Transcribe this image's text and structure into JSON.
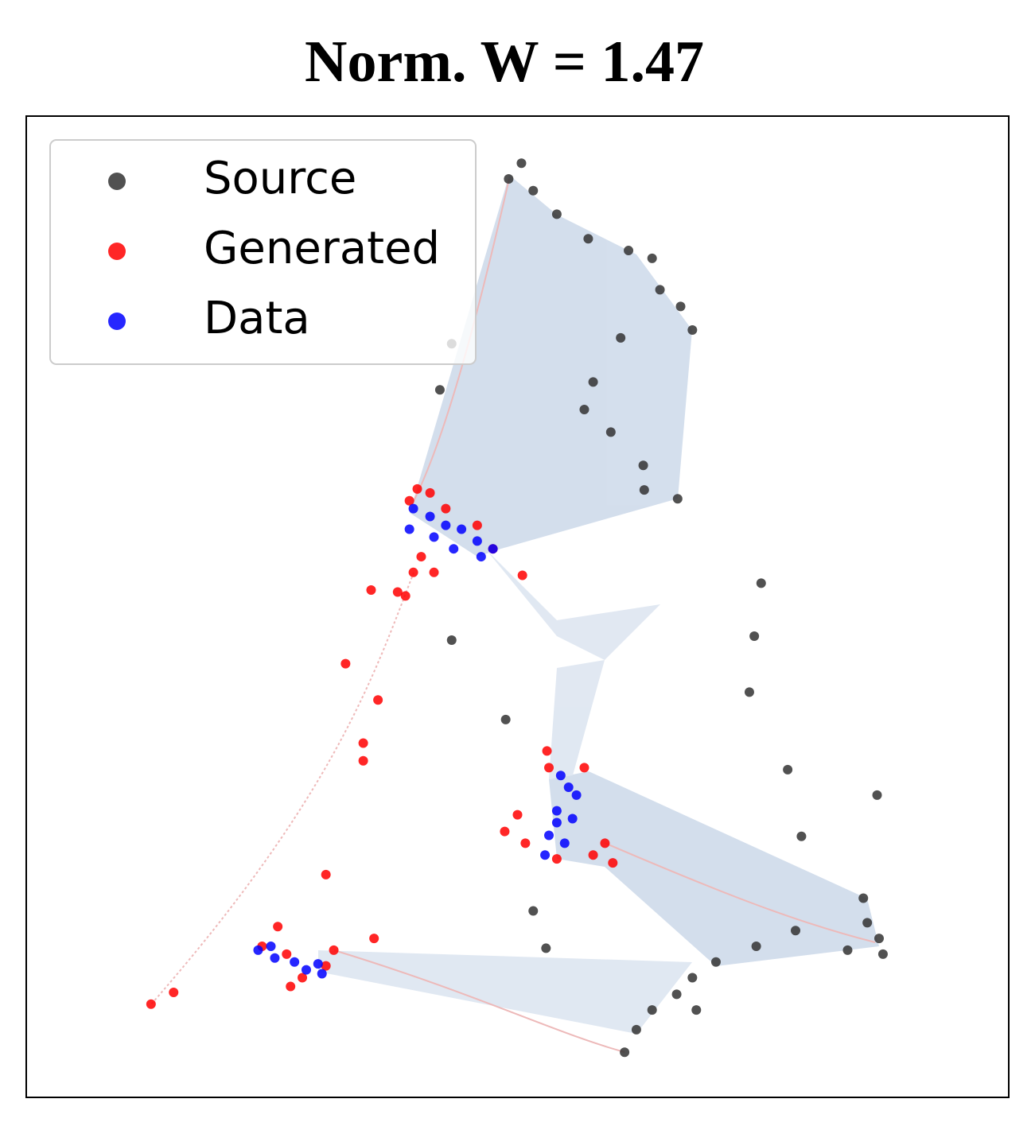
{
  "chart_data": {
    "type": "scatter",
    "title": "Norm. W = 1.47",
    "xlim": [
      0,
      100
    ],
    "ylim": [
      0,
      100
    ],
    "grid": false,
    "legend": "upper left",
    "series": [
      {
        "name": "Source",
        "color": "#333333",
        "x": [
          50.4,
          49.1,
          51.6,
          54.0,
          57.2,
          61.3,
          63.7,
          64.5,
          66.6,
          67.8,
          60.5,
          57.7,
          56.8,
          59.5,
          62.8,
          62.9,
          66.3,
          43.3,
          42.1,
          74.8,
          74.1,
          73.6,
          43.3,
          48.8,
          77.5,
          86.6,
          78.9,
          85.2,
          85.6,
          86.8,
          87.2,
          83.6,
          78.3,
          74.3,
          70.2,
          67.8,
          66.2,
          63.7,
          62.1,
          60.9,
          68.2,
          51.6,
          52.9
        ],
        "y": [
          95.2,
          93.6,
          92.4,
          90.0,
          87.5,
          86.3,
          85.5,
          82.3,
          80.6,
          78.2,
          77.4,
          72.9,
          70.1,
          67.8,
          64.4,
          61.9,
          61.0,
          76.8,
          72.1,
          52.4,
          47.0,
          41.3,
          46.6,
          38.5,
          33.4,
          30.8,
          26.6,
          20.3,
          17.8,
          16.2,
          14.6,
          15.0,
          17.0,
          15.4,
          13.8,
          12.2,
          10.5,
          8.9,
          6.9,
          4.6,
          8.9,
          19.0,
          15.2
        ]
      },
      {
        "name": "Generated",
        "color": "#ff0000",
        "x": [
          39.0,
          39.8,
          41.1,
          42.7,
          45.9,
          47.5,
          40.2,
          41.5,
          39.4,
          50.5,
          35.1,
          37.8,
          38.6,
          32.5,
          35.8,
          34.3,
          34.3,
          30.5,
          25.6,
          15.0,
          12.7,
          53.0,
          53.2,
          56.8,
          48.7,
          50.0,
          50.8,
          57.7,
          58.9,
          59.7,
          54.0,
          35.4,
          24.0,
          26.5,
          26.9,
          31.3,
          30.5,
          28.1
        ],
        "y": [
          60.8,
          62.0,
          61.6,
          60.0,
          58.3,
          55.9,
          55.1,
          53.5,
          53.5,
          53.2,
          51.7,
          51.5,
          51.1,
          44.2,
          40.5,
          36.1,
          34.3,
          22.7,
          17.4,
          10.7,
          9.5,
          35.3,
          33.6,
          33.6,
          27.1,
          28.8,
          25.9,
          24.7,
          25.9,
          23.9,
          24.3,
          16.2,
          15.4,
          14.6,
          11.3,
          15.0,
          13.4,
          12.2
        ]
      },
      {
        "name": "Data",
        "color": "#0000ff",
        "x": [
          39.4,
          41.1,
          42.7,
          44.3,
          45.9,
          47.5,
          39.0,
          41.5,
          43.5,
          46.3,
          54.4,
          55.2,
          56.0,
          54.0,
          55.6,
          53.2,
          54.8,
          52.8,
          54.0,
          23.6,
          24.9,
          25.3,
          27.3,
          28.5,
          29.7,
          30.1
        ],
        "y": [
          60.0,
          59.2,
          58.3,
          57.9,
          56.7,
          55.9,
          57.9,
          57.1,
          55.9,
          55.1,
          32.8,
          31.6,
          30.8,
          29.2,
          28.4,
          26.7,
          25.9,
          24.7,
          28.0,
          15.0,
          15.4,
          14.2,
          13.8,
          13.0,
          13.6,
          12.6
        ]
      }
    ]
  }
}
